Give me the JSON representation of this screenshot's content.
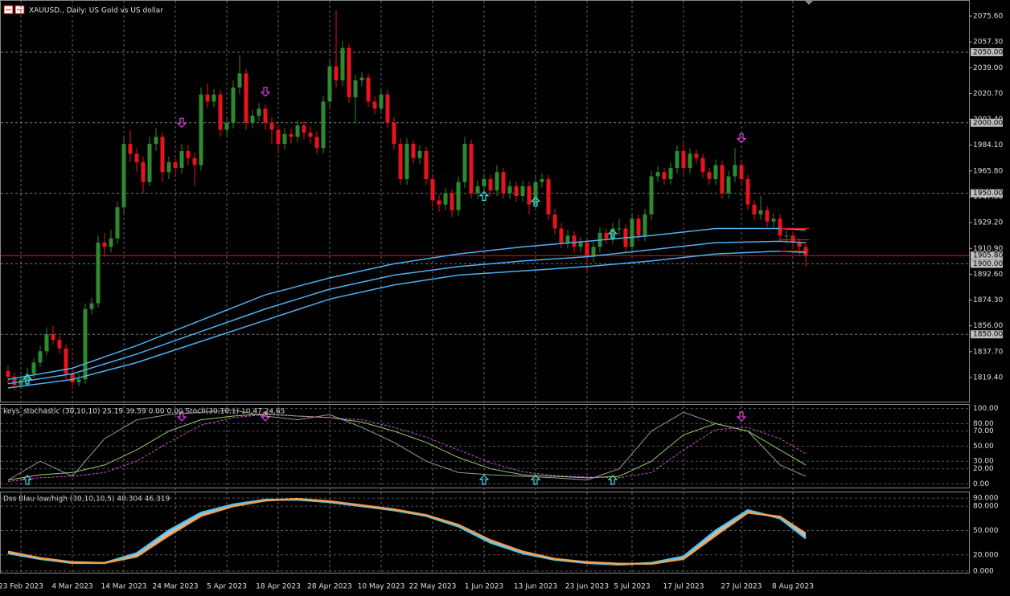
{
  "chart_data": {
    "type": "candlestick",
    "title": "XAUUSD., Daily: US Gold vs US dollar",
    "up_color": "#2f8a2f",
    "down_color": "#e8141b",
    "ylim": [
      1802.3,
      2087
    ],
    "yticks": [
      {
        "value": 2075.6,
        "label": "2075.60"
      },
      {
        "value": 2057.3,
        "label": "2057.30"
      },
      {
        "value": 2039,
        "label": "2039.00"
      },
      {
        "value": 2020.7,
        "label": "2020.70"
      },
      {
        "value": 2002.4,
        "label": "2002.40"
      },
      {
        "value": 1984.1,
        "label": "1984.10"
      },
      {
        "value": 1965.8,
        "label": "1965.80"
      },
      {
        "value": 1947.5,
        "label": "1947.50"
      },
      {
        "value": 1929.2,
        "label": "1929.20"
      },
      {
        "value": 1910.9,
        "label": "1910.90"
      },
      {
        "value": 1892.6,
        "label": "1892.60"
      },
      {
        "value": 1874.3,
        "label": "1874.30"
      },
      {
        "value": 1856,
        "label": "1856.00"
      },
      {
        "value": 1837.7,
        "label": "1837.70"
      },
      {
        "value": 1819.4,
        "label": "1819.40"
      }
    ],
    "levels": [
      {
        "value": 2050,
        "label": "2050.00"
      },
      {
        "value": 2000,
        "label": "2000.00"
      },
      {
        "value": 1950,
        "label": "1950.00"
      },
      {
        "value": 1900,
        "label": "1900.00"
      },
      {
        "value": 1850,
        "label": "1850.00"
      }
    ],
    "current_price": {
      "value": 1905.8,
      "label": "1905.80"
    },
    "xticks": [
      {
        "value": 2,
        "label": "23 Feb 2023"
      },
      {
        "value": 10,
        "label": "4 Mar 2023"
      },
      {
        "value": 18,
        "label": "14 Mar 2023"
      },
      {
        "value": 26,
        "label": "24 Mar 2023"
      },
      {
        "value": 34,
        "label": "5 Apr 2023"
      },
      {
        "value": 42,
        "label": "18 Apr 2023"
      },
      {
        "value": 50,
        "label": "28 Apr 2023"
      },
      {
        "value": 58,
        "label": "10 May 2023"
      },
      {
        "value": 66,
        "label": "22 May 2023"
      },
      {
        "value": 74,
        "label": "1 Jun 2023"
      },
      {
        "value": 82,
        "label": "13 Jun 2023"
      },
      {
        "value": 90,
        "label": "23 Jun 2023"
      },
      {
        "value": 97,
        "label": "5 Jul 2023"
      },
      {
        "value": 105,
        "label": "17 Jul 2023"
      },
      {
        "value": 114,
        "label": "27 Jul 2023"
      },
      {
        "value": 122,
        "label": "8 Aug 2023"
      }
    ],
    "ohlc": [
      [
        1824,
        1828,
        1815,
        1820
      ],
      [
        1820,
        1823,
        1810,
        1814
      ],
      [
        1814,
        1821,
        1811,
        1818
      ],
      [
        1818,
        1826,
        1815,
        1822
      ],
      [
        1822,
        1833,
        1819,
        1830
      ],
      [
        1830,
        1842,
        1827,
        1838
      ],
      [
        1838,
        1855,
        1835,
        1850
      ],
      [
        1850,
        1856,
        1843,
        1846
      ],
      [
        1846,
        1849,
        1836,
        1840
      ],
      [
        1840,
        1843,
        1818,
        1822
      ],
      [
        1822,
        1825,
        1812,
        1816
      ],
      [
        1816,
        1822,
        1813,
        1818
      ],
      [
        1818,
        1872,
        1815,
        1868
      ],
      [
        1868,
        1876,
        1864,
        1872
      ],
      [
        1872,
        1920,
        1869,
        1915
      ],
      [
        1915,
        1922,
        1905,
        1912
      ],
      [
        1912,
        1924,
        1908,
        1918
      ],
      [
        1918,
        1944,
        1914,
        1940
      ],
      [
        1940,
        1990,
        1936,
        1985
      ],
      [
        1985,
        1995,
        1972,
        1978
      ],
      [
        1978,
        1982,
        1965,
        1972
      ],
      [
        1972,
        1976,
        1950,
        1958
      ],
      [
        1958,
        1990,
        1955,
        1985
      ],
      [
        1985,
        1996,
        1980,
        1990
      ],
      [
        1990,
        1993,
        1958,
        1965
      ],
      [
        1965,
        1976,
        1960,
        1972
      ],
      [
        1972,
        1975,
        1963,
        1968
      ],
      [
        1968,
        1985,
        1964,
        1980
      ],
      [
        1980,
        1984,
        1970,
        1975
      ],
      [
        1975,
        1979,
        1955,
        1970
      ],
      [
        1970,
        2025,
        1966,
        2020
      ],
      [
        2020,
        2028,
        2010,
        2015
      ],
      [
        2015,
        2024,
        2011,
        2020
      ],
      [
        2020,
        2023,
        1990,
        1995
      ],
      [
        1995,
        2004,
        1990,
        2000
      ],
      [
        2000,
        2030,
        1996,
        2025
      ],
      [
        2025,
        2048,
        2020,
        2035
      ],
      [
        2035,
        2038,
        1995,
        2000
      ],
      [
        2000,
        2009,
        1996,
        2005
      ],
      [
        2005,
        2014,
        2001,
        2010
      ],
      [
        2010,
        2013,
        1995,
        2000
      ],
      [
        2000,
        2004,
        1985,
        1995
      ],
      [
        1995,
        1999,
        1978,
        1985
      ],
      [
        1985,
        1996,
        1981,
        1992
      ],
      [
        1992,
        1996,
        1985,
        1990
      ],
      [
        1990,
        2002,
        1986,
        1998
      ],
      [
        1998,
        2001,
        1988,
        1993
      ],
      [
        1993,
        1997,
        1985,
        1990
      ],
      [
        1990,
        1994,
        1978,
        1982
      ],
      [
        1982,
        2019,
        1978,
        2015
      ],
      [
        2015,
        2045,
        2011,
        2040
      ],
      [
        2040,
        2080,
        2025,
        2030
      ],
      [
        2030,
        2058,
        2026,
        2053
      ],
      [
        2053,
        2056,
        2014,
        2018
      ],
      [
        2018,
        2034,
        2000,
        2030
      ],
      [
        2030,
        2036,
        2026,
        2032
      ],
      [
        2032,
        2035,
        2011,
        2015
      ],
      [
        2015,
        2019,
        2006,
        2010
      ],
      [
        2010,
        2024,
        2006,
        2020
      ],
      [
        2020,
        2023,
        1996,
        2000
      ],
      [
        2000,
        2004,
        1981,
        1985
      ],
      [
        1985,
        1989,
        1956,
        1960
      ],
      [
        1960,
        1989,
        1956,
        1985
      ],
      [
        1985,
        1988,
        1971,
        1975
      ],
      [
        1975,
        1984,
        1971,
        1980
      ],
      [
        1980,
        1983,
        1956,
        1960
      ],
      [
        1960,
        1964,
        1940,
        1945
      ],
      [
        1945,
        1949,
        1937,
        1942
      ],
      [
        1942,
        1954,
        1938,
        1950
      ],
      [
        1950,
        1953,
        1933,
        1938
      ],
      [
        1938,
        1962,
        1934,
        1958
      ],
      [
        1958,
        1990,
        1954,
        1985
      ],
      [
        1985,
        1988,
        1946,
        1950
      ],
      [
        1950,
        1959,
        1946,
        1955
      ],
      [
        1955,
        1964,
        1951,
        1960
      ],
      [
        1960,
        1963,
        1948,
        1952
      ],
      [
        1952,
        1970,
        1948,
        1965
      ],
      [
        1965,
        1968,
        1946,
        1950
      ],
      [
        1950,
        1959,
        1946,
        1955
      ],
      [
        1955,
        1958,
        1944,
        1948
      ],
      [
        1948,
        1959,
        1944,
        1955
      ],
      [
        1955,
        1958,
        1935,
        1942
      ],
      [
        1942,
        1962,
        1938,
        1958
      ],
      [
        1958,
        1964,
        1954,
        1960
      ],
      [
        1960,
        1963,
        1931,
        1935
      ],
      [
        1935,
        1939,
        1921,
        1925
      ],
      [
        1925,
        1929,
        1911,
        1915
      ],
      [
        1915,
        1924,
        1911,
        1920
      ],
      [
        1920,
        1923,
        1908,
        1912
      ],
      [
        1912,
        1919,
        1908,
        1915
      ],
      [
        1915,
        1918,
        1895,
        1905
      ],
      [
        1905,
        1916,
        1901,
        1912
      ],
      [
        1912,
        1926,
        1908,
        1922
      ],
      [
        1922,
        1925,
        1914,
        1918
      ],
      [
        1918,
        1929,
        1914,
        1925
      ],
      [
        1925,
        1932,
        1920,
        1925
      ],
      [
        1925,
        1928,
        1908,
        1912
      ],
      [
        1912,
        1936,
        1908,
        1932
      ],
      [
        1932,
        1935,
        1916,
        1920
      ],
      [
        1920,
        1939,
        1916,
        1935
      ],
      [
        1935,
        1966,
        1931,
        1962
      ],
      [
        1962,
        1969,
        1958,
        1965
      ],
      [
        1965,
        1968,
        1956,
        1960
      ],
      [
        1960,
        1972,
        1956,
        1968
      ],
      [
        1968,
        1984,
        1964,
        1980
      ],
      [
        1980,
        1987,
        1964,
        1968
      ],
      [
        1968,
        1982,
        1964,
        1978
      ],
      [
        1978,
        1981,
        1971,
        1975
      ],
      [
        1975,
        1978,
        1961,
        1965
      ],
      [
        1965,
        1968,
        1956,
        1960
      ],
      [
        1960,
        1974,
        1956,
        1970
      ],
      [
        1970,
        1973,
        1946,
        1950
      ],
      [
        1950,
        1966,
        1946,
        1962
      ],
      [
        1962,
        1982,
        1958,
        1970
      ],
      [
        1970,
        1973,
        1956,
        1960
      ],
      [
        1960,
        1963,
        1938,
        1942
      ],
      [
        1942,
        1945,
        1931,
        1935
      ],
      [
        1935,
        1948,
        1931,
        1938
      ],
      [
        1938,
        1941,
        1926,
        1930
      ],
      [
        1930,
        1936,
        1926,
        1932
      ],
      [
        1932,
        1935,
        1916,
        1920
      ],
      [
        1920,
        1924,
        1915,
        1920
      ],
      [
        1920,
        1923,
        1911,
        1915
      ],
      [
        1915,
        1918,
        1906,
        1912
      ],
      [
        1912,
        1915,
        1898,
        1905.8
      ]
    ],
    "ma": {
      "x": [
        0,
        10,
        20,
        30,
        40,
        50,
        60,
        70,
        80,
        90,
        100,
        110,
        120,
        124
      ],
      "series": [
        {
          "color": "#4fb0ee",
          "values": [
            1812,
            1818,
            1830,
            1845,
            1860,
            1875,
            1885,
            1892,
            1895,
            1898,
            1902,
            1907,
            1909,
            1908
          ]
        },
        {
          "color": "#4fb0ee",
          "values": [
            1815,
            1822,
            1836,
            1852,
            1868,
            1882,
            1892,
            1898,
            1902,
            1905,
            1910,
            1915,
            1916,
            1915
          ]
        },
        {
          "color": "#4fb0ee",
          "values": [
            1818,
            1826,
            1842,
            1860,
            1878,
            1890,
            1900,
            1907,
            1912,
            1916,
            1920,
            1925,
            1925,
            1924
          ]
        }
      ]
    },
    "red_levels": {
      "color": "#e8141b",
      "values": [
        1925,
        1917,
        1909
      ]
    },
    "up_signals": {
      "color": "#40e0f0",
      "x": [
        3,
        74,
        82,
        94
      ],
      "values": [
        1812,
        1942,
        1938,
        1915
      ]
    },
    "down_signals": {
      "color": "#e040e0",
      "x": [
        27,
        40,
        114
      ],
      "values": [
        1998,
        2020,
        1987
      ]
    },
    "stochastic": {
      "title": "keys_stochastic (30,10,10) 25.19 39.59 0.00 0.00 Stoch(30,10,1) 10.47 24.65",
      "ylim": [
        -5,
        106
      ],
      "yticks": [
        {
          "value": 100,
          "label": "100.00"
        },
        {
          "value": 80,
          "label": "80.00"
        },
        {
          "value": 70,
          "label": "70.00"
        },
        {
          "value": 50,
          "label": "50.00"
        },
        {
          "value": 30,
          "label": "30.00"
        },
        {
          "value": 20,
          "label": "20.00"
        },
        {
          "value": 0,
          "label": "0.00"
        }
      ],
      "x": [
        0,
        5,
        10,
        15,
        20,
        25,
        30,
        35,
        40,
        45,
        50,
        55,
        60,
        65,
        70,
        75,
        80,
        85,
        90,
        95,
        100,
        105,
        110,
        115,
        120,
        124
      ],
      "series": [
        {
          "color": "#9a9a9a",
          "values": [
            5,
            30,
            10,
            60,
            85,
            92,
            95,
            98,
            90,
            85,
            92,
            75,
            55,
            30,
            15,
            12,
            10,
            8,
            5,
            20,
            70,
            95,
            80,
            70,
            25,
            10
          ]
        },
        {
          "color": "#9acd6a",
          "values": [
            5,
            12,
            15,
            25,
            45,
            70,
            85,
            90,
            93,
            90,
            88,
            82,
            70,
            55,
            35,
            20,
            12,
            10,
            8,
            10,
            30,
            65,
            80,
            70,
            45,
            25
          ]
        },
        {
          "color": "#d050d0",
          "dashed": true,
          "values": [
            3,
            8,
            10,
            15,
            30,
            55,
            78,
            88,
            92,
            90,
            88,
            85,
            75,
            62,
            45,
            28,
            16,
            11,
            9,
            8,
            15,
            45,
            72,
            75,
            60,
            40
          ]
        }
      ]
    },
    "dss": {
      "title": "Dss Blau low/high (30,10,10,5) 40.304 46.319",
      "ylim": [
        -2,
        98
      ],
      "yticks": [
        {
          "value": 90,
          "label": "90.000"
        },
        {
          "value": 80,
          "label": "80.000"
        },
        {
          "value": 50,
          "label": "50.000"
        },
        {
          "value": 20,
          "label": "20.000"
        },
        {
          "value": 0,
          "label": "0.000"
        }
      ],
      "x": [
        0,
        5,
        10,
        15,
        20,
        25,
        30,
        35,
        40,
        45,
        50,
        55,
        60,
        65,
        70,
        75,
        80,
        85,
        90,
        95,
        100,
        105,
        110,
        115,
        120,
        124
      ],
      "fill": "#e8e0f0",
      "series": [
        {
          "color": "#4fc8f0",
          "values": [
            22,
            15,
            10,
            10,
            22,
            50,
            72,
            82,
            88,
            88,
            85,
            80,
            75,
            68,
            55,
            35,
            22,
            14,
            10,
            8,
            10,
            18,
            50,
            75,
            65,
            40.3
          ]
        },
        {
          "color": "#f0a050",
          "values": [
            24,
            16,
            11,
            10,
            18,
            44,
            68,
            80,
            87,
            89,
            86,
            81,
            76,
            69,
            57,
            38,
            24,
            15,
            11,
            9,
            9,
            15,
            44,
            72,
            67,
            46.3
          ]
        }
      ]
    }
  }
}
